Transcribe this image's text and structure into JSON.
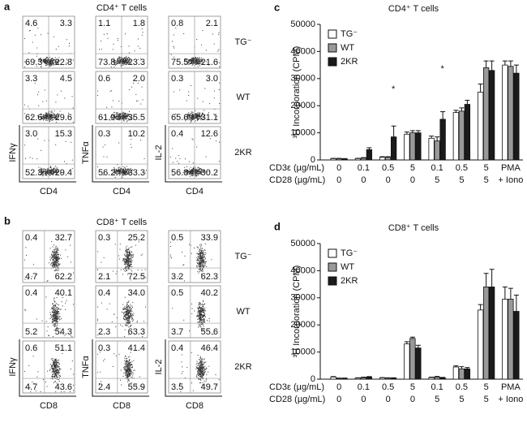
{
  "flow_panels": [
    {
      "letter": "a",
      "title": "CD4⁺ T cells",
      "x_label": "CD4",
      "y_labels": [
        "IFNγ",
        "TNFα",
        "IL-2"
      ],
      "row_labels": [
        "TG⁻",
        "WT",
        "2KR"
      ],
      "plots": [
        [
          [
            "4.6",
            "3.3",
            "69.3",
            "22.8"
          ],
          [
            "1.1",
            "1.8",
            "73.8",
            "23.3"
          ],
          [
            "0.8",
            "2.1",
            "75.5",
            "21.6"
          ]
        ],
        [
          [
            "3.3",
            "4.5",
            "62.6",
            "29.6"
          ],
          [
            "0.6",
            "2.0",
            "61.9",
            "35.5"
          ],
          [
            "0.3",
            "3.0",
            "65.6",
            "31.1"
          ]
        ],
        [
          [
            "3.0",
            "15.3",
            "52.3",
            "29.4"
          ],
          [
            "0.3",
            "10.2",
            "56.2",
            "33.3"
          ],
          [
            "0.4",
            "12.6",
            "56.8",
            "30.2"
          ]
        ]
      ]
    },
    {
      "letter": "b",
      "title": "CD8⁺ T cells",
      "x_label": "CD8",
      "y_labels": [
        "IFNγ",
        "TNFα",
        "IL-2"
      ],
      "row_labels": [
        "TG⁻",
        "WT",
        "2KR"
      ],
      "plots": [
        [
          [
            "0.4",
            "32.7",
            "4.7",
            "62.2"
          ],
          [
            "0.3",
            "25.2",
            "2.1",
            "72.5"
          ],
          [
            "0.5",
            "33.9",
            "3.2",
            "62.3"
          ]
        ],
        [
          [
            "0.4",
            "40.1",
            "5.2",
            "54.3"
          ],
          [
            "0.4",
            "34.0",
            "2.3",
            "63.3"
          ],
          [
            "0.5",
            "40.2",
            "3.7",
            "55.6"
          ]
        ],
        [
          [
            "0.6",
            "51.1",
            "4.7",
            "43.6"
          ],
          [
            "0.3",
            "41.4",
            "2.4",
            "55.9"
          ],
          [
            "0.4",
            "46.4",
            "3.5",
            "49.7"
          ]
        ]
      ]
    }
  ],
  "chart_data": [
    {
      "type": "bar",
      "letter": "c",
      "title": "CD4⁺ T cells",
      "y_label": "³H Incorporation (CPM)",
      "category_rows": [
        {
          "label": "CD3ε (µg/mL)",
          "values": [
            "0",
            "0.1",
            "0.5",
            "5",
            "0.1",
            "0.5",
            "5",
            "PMA"
          ]
        },
        {
          "label": "CD28 (µg/mL)",
          "values": [
            "0",
            "0",
            "0",
            "0",
            "5",
            "5",
            "5",
            "+ Iono"
          ]
        }
      ],
      "ylim": [
        0,
        50000
      ],
      "yticks": [
        0,
        10000,
        20000,
        30000,
        40000,
        50000
      ],
      "legend": "upper-left",
      "series": [
        {
          "name": "TG⁻",
          "color": "#ffffff",
          "values": [
            500,
            500,
            1000,
            9500,
            8000,
            17500,
            25000,
            35000
          ],
          "errors": [
            100,
            100,
            200,
            800,
            800,
            800,
            3000,
            1500
          ]
        },
        {
          "name": "WT",
          "color": "#999999",
          "values": [
            500,
            700,
            1000,
            10000,
            7000,
            18000,
            34000,
            34500
          ],
          "errors": [
            100,
            150,
            200,
            800,
            1500,
            1200,
            2500,
            2000
          ]
        },
        {
          "name": "2KR",
          "color": "#1a1a1a",
          "values": [
            400,
            3800,
            8500,
            10000,
            15000,
            20500,
            33000,
            32000
          ],
          "errors": [
            100,
            700,
            4000,
            800,
            2800,
            1500,
            3500,
            3000
          ]
        }
      ],
      "annotations": [
        {
          "text": "*",
          "category": 2,
          "y": 26000
        },
        {
          "text": "*",
          "category": 4,
          "y": 33500
        }
      ]
    },
    {
      "type": "bar",
      "letter": "d",
      "title": "CD8⁺ T cells",
      "y_label": "³H Incorporation (CPM)",
      "category_rows": [
        {
          "label": "CD3ε (µg/mL)",
          "values": [
            "0",
            "0.1",
            "0.5",
            "5",
            "0.1",
            "0.5",
            "5",
            "PMA"
          ]
        },
        {
          "label": "CD28 (µg/mL)",
          "values": [
            "0",
            "0",
            "0",
            "0",
            "5",
            "5",
            "5",
            "+ Iono"
          ]
        }
      ],
      "ylim": [
        0,
        50000
      ],
      "yticks": [
        0,
        10000,
        20000,
        30000,
        40000,
        50000
      ],
      "legend": "upper-left",
      "series": [
        {
          "name": "TG⁻",
          "color": "#ffffff",
          "values": [
            800,
            400,
            500,
            13000,
            600,
            4500,
            25500,
            29500
          ],
          "errors": [
            150,
            100,
            100,
            800,
            150,
            400,
            2000,
            4500
          ]
        },
        {
          "name": "WT",
          "color": "#999999",
          "values": [
            300,
            600,
            400,
            15000,
            800,
            3800,
            34000,
            29500
          ],
          "errors": [
            100,
            150,
            100,
            500,
            200,
            800,
            5000,
            4000
          ]
        },
        {
          "name": "2KR",
          "color": "#1a1a1a",
          "values": [
            300,
            800,
            400,
            11500,
            500,
            3800,
            34000,
            25000
          ],
          "errors": [
            100,
            150,
            100,
            1000,
            150,
            500,
            6500,
            6000
          ]
        }
      ],
      "annotations": []
    }
  ]
}
